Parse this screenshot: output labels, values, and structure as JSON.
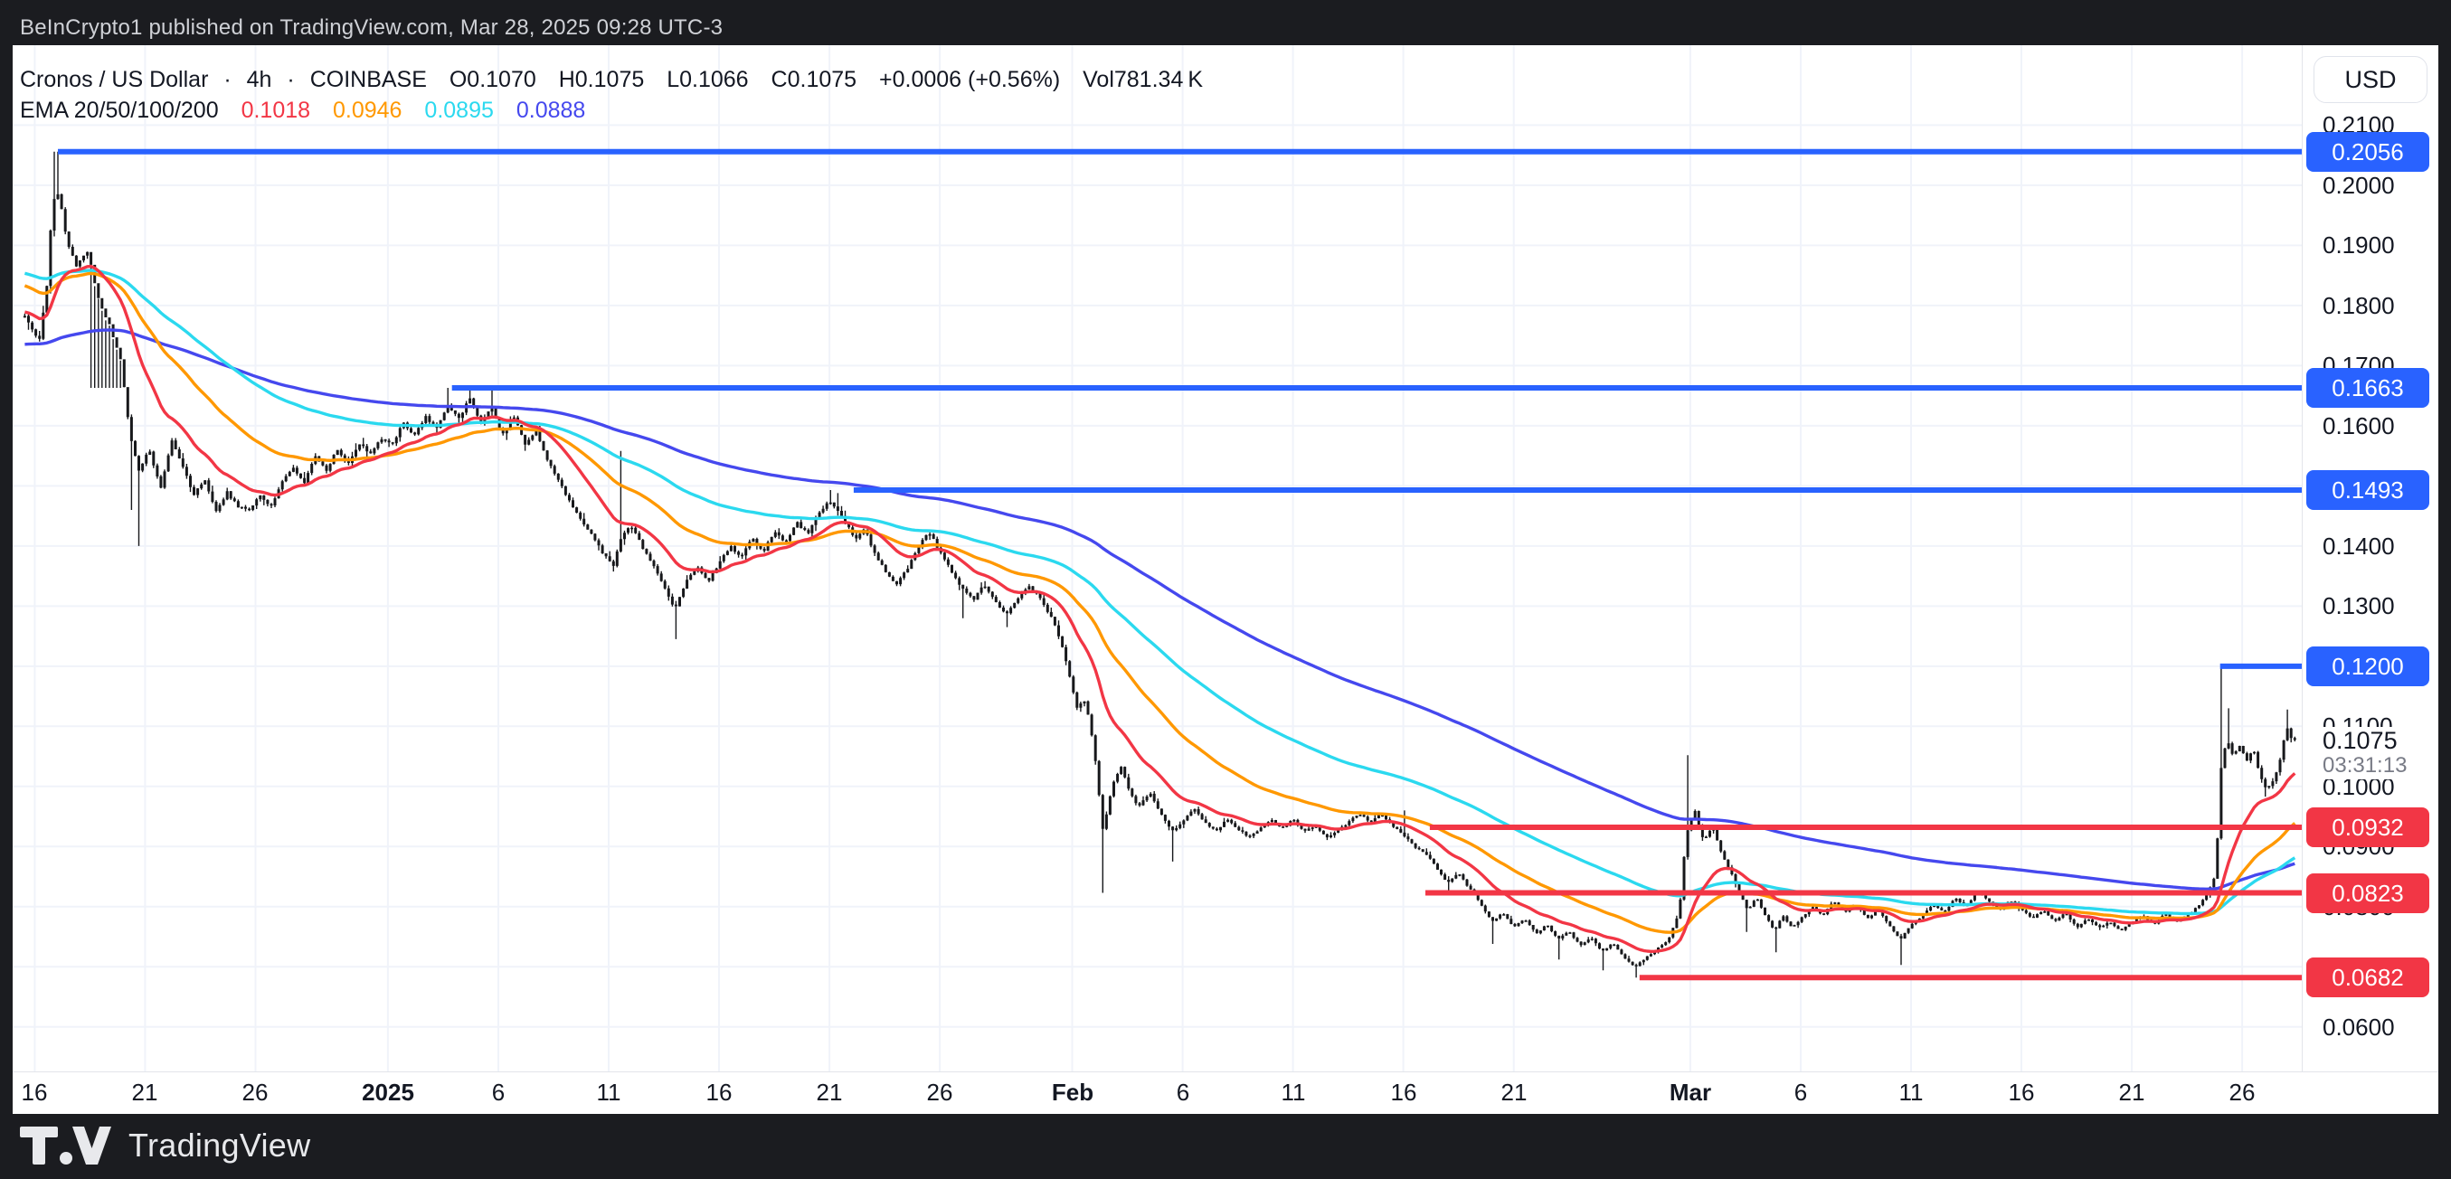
{
  "attribution": {
    "text": "BeInCrypto1 published on TradingView.com, Mar 28, 2025 09:28 UTC-3"
  },
  "legend": {
    "symbol": "Cronos / US Dollar",
    "separator": "·",
    "interval": "4h",
    "exchange": "COINBASE",
    "ohlc": {
      "o_label": "O",
      "o": "0.1070",
      "h_label": "H",
      "h": "0.1075",
      "l_label": "L",
      "l": "0.1066",
      "c_label": "C",
      "c": "0.1075"
    },
    "change": "+0.0006 (+0.56%)",
    "volume": "Vol781.34 K",
    "ema_title": "EMA 20/50/100/200"
  },
  "axis": {
    "currency_button": "USD"
  },
  "footer": {
    "brand": "TradingView"
  },
  "chart_data": {
    "type": "candlestick",
    "title": "Cronos / US Dollar",
    "interval": "4h",
    "exchange": "COINBASE",
    "ohlc": {
      "open": 0.107,
      "high": 0.1075,
      "low": 0.1066,
      "close": 0.1075
    },
    "change_abs": 0.0006,
    "change_pct": 0.56,
    "volume": "781.34 K",
    "grid": true,
    "candle_color": "#17181b",
    "ylim": [
      0.0526,
      0.2233
    ],
    "x_domain_days": [
      -1.0,
      102.7
    ],
    "x_start_date": "2024-12-16",
    "bars_per_day": 6,
    "y_ticks": [
      {
        "label": "0.2100",
        "value": 0.21
      },
      {
        "label": "0.2000",
        "value": 0.2
      },
      {
        "label": "0.1900",
        "value": 0.19
      },
      {
        "label": "0.1800",
        "value": 0.18
      },
      {
        "label": "0.1700",
        "value": 0.17
      },
      {
        "label": "0.1600",
        "value": 0.16
      },
      {
        "label": "0.1500",
        "value": 0.15
      },
      {
        "label": "0.1400",
        "value": 0.14
      },
      {
        "label": "0.1300",
        "value": 0.13
      },
      {
        "label": "0.1200",
        "value": 0.12
      },
      {
        "label": "0.1100",
        "value": 0.11
      },
      {
        "label": "0.1000",
        "value": 0.1
      },
      {
        "label": "0.0900",
        "value": 0.09
      },
      {
        "label": "0.0800",
        "value": 0.08
      },
      {
        "label": "0.0700",
        "value": 0.07
      },
      {
        "label": "0.0600",
        "value": 0.06
      }
    ],
    "x_labels": [
      {
        "label": "16",
        "day": 0,
        "bold": false
      },
      {
        "label": "21",
        "day": 5,
        "bold": false
      },
      {
        "label": "26",
        "day": 10,
        "bold": false
      },
      {
        "label": "2025",
        "day": 16,
        "bold": true
      },
      {
        "label": "6",
        "day": 21,
        "bold": false
      },
      {
        "label": "11",
        "day": 26,
        "bold": false
      },
      {
        "label": "16",
        "day": 31,
        "bold": false
      },
      {
        "label": "21",
        "day": 36,
        "bold": false
      },
      {
        "label": "26",
        "day": 41,
        "bold": false
      },
      {
        "label": "Feb",
        "day": 47,
        "bold": true
      },
      {
        "label": "6",
        "day": 52,
        "bold": false
      },
      {
        "label": "11",
        "day": 57,
        "bold": false
      },
      {
        "label": "16",
        "day": 62,
        "bold": false
      },
      {
        "label": "21",
        "day": 67,
        "bold": false
      },
      {
        "label": "Mar",
        "day": 75,
        "bold": true
      },
      {
        "label": "6",
        "day": 80,
        "bold": false
      },
      {
        "label": "11",
        "day": 85,
        "bold": false
      },
      {
        "label": "16",
        "day": 90,
        "bold": false
      },
      {
        "label": "21",
        "day": 95,
        "bold": false
      },
      {
        "label": "26",
        "day": 100,
        "bold": false
      }
    ],
    "levels": [
      {
        "label": "0.2056",
        "price": 0.2056,
        "from_day": 1.05,
        "color": "#2962ff",
        "kind": "resistance"
      },
      {
        "label": "0.1663",
        "price": 0.1663,
        "from_day": 18.9,
        "color": "#2962ff",
        "kind": "resistance"
      },
      {
        "label": "0.1493",
        "price": 0.1493,
        "from_day": 37.1,
        "color": "#2962ff",
        "kind": "resistance"
      },
      {
        "label": "0.1200",
        "price": 0.12,
        "from_day": 99.0,
        "color": "#2962ff",
        "kind": "resistance"
      },
      {
        "label": "0.0932",
        "price": 0.0932,
        "from_day": 63.2,
        "color": "#f23645",
        "kind": "support"
      },
      {
        "label": "0.0823",
        "price": 0.0823,
        "from_day": 63.0,
        "color": "#f23645",
        "kind": "support"
      },
      {
        "label": "0.0682",
        "price": 0.0682,
        "from_day": 72.7,
        "color": "#f23645",
        "kind": "support"
      }
    ],
    "last_price": {
      "label": "0.1075",
      "price": 0.1075,
      "countdown": "03:31:13"
    },
    "emas": {
      "periods": [
        20,
        50,
        100,
        200
      ],
      "colors": [
        "#f23645",
        "#ff9800",
        "#2bd9ef",
        "#4548ee"
      ],
      "seeds": [
        0.179,
        0.1835,
        0.1855,
        0.1735
      ],
      "legend_values": [
        "0.1018",
        "0.0946",
        "0.0895",
        "0.0888"
      ]
    },
    "price_path_waypoints": [
      [
        -0.45,
        0.178
      ],
      [
        0.2,
        0.174
      ],
      [
        0.55,
        0.183
      ],
      [
        0.8,
        0.197
      ],
      [
        1.1,
        0.199
      ],
      [
        1.45,
        0.191
      ],
      [
        1.9,
        0.1865
      ],
      [
        2.4,
        0.189
      ],
      [
        2.9,
        0.181
      ],
      [
        3.4,
        0.1765
      ],
      [
        3.9,
        0.171
      ],
      [
        4.3,
        0.159
      ],
      [
        4.7,
        0.1525
      ],
      [
        5.2,
        0.156
      ],
      [
        5.7,
        0.1495
      ],
      [
        6.2,
        0.1575
      ],
      [
        6.7,
        0.1535
      ],
      [
        7.2,
        0.1485
      ],
      [
        7.7,
        0.151
      ],
      [
        8.2,
        0.1455
      ],
      [
        8.7,
        0.149
      ],
      [
        9.2,
        0.1465
      ],
      [
        9.7,
        0.146
      ],
      [
        10.2,
        0.1485
      ],
      [
        10.7,
        0.1465
      ],
      [
        11.2,
        0.1505
      ],
      [
        11.7,
        0.153
      ],
      [
        12.2,
        0.1505
      ],
      [
        12.7,
        0.155
      ],
      [
        13.2,
        0.1525
      ],
      [
        13.7,
        0.156
      ],
      [
        14.2,
        0.1535
      ],
      [
        14.7,
        0.157
      ],
      [
        15.2,
        0.1555
      ],
      [
        15.7,
        0.158
      ],
      [
        16.2,
        0.157
      ],
      [
        16.7,
        0.1605
      ],
      [
        17.2,
        0.1585
      ],
      [
        17.7,
        0.1615
      ],
      [
        18.2,
        0.1595
      ],
      [
        18.7,
        0.1635
      ],
      [
        19.2,
        0.161
      ],
      [
        19.7,
        0.1645
      ],
      [
        20.2,
        0.1605
      ],
      [
        20.7,
        0.163
      ],
      [
        21.2,
        0.1585
      ],
      [
        21.7,
        0.1615
      ],
      [
        22.2,
        0.157
      ],
      [
        22.7,
        0.159
      ],
      [
        23.2,
        0.1545
      ],
      [
        23.7,
        0.151
      ],
      [
        24.2,
        0.1475
      ],
      [
        24.7,
        0.1445
      ],
      [
        25.2,
        0.142
      ],
      [
        25.7,
        0.139
      ],
      [
        26.2,
        0.1365
      ],
      [
        26.5,
        0.141
      ],
      [
        27,
        0.1435
      ],
      [
        27.5,
        0.14
      ],
      [
        28,
        0.137
      ],
      [
        28.5,
        0.1335
      ],
      [
        29,
        0.1295
      ],
      [
        29.5,
        0.134
      ],
      [
        30,
        0.1365
      ],
      [
        30.5,
        0.134
      ],
      [
        31,
        0.137
      ],
      [
        31.5,
        0.14
      ],
      [
        32,
        0.138
      ],
      [
        32.5,
        0.1415
      ],
      [
        33,
        0.139
      ],
      [
        33.5,
        0.1425
      ],
      [
        34,
        0.1405
      ],
      [
        34.5,
        0.144
      ],
      [
        35,
        0.142
      ],
      [
        35.5,
        0.1455
      ],
      [
        36,
        0.1475
      ],
      [
        36.4,
        0.146
      ],
      [
        36.8,
        0.1435
      ],
      [
        37.2,
        0.141
      ],
      [
        37.6,
        0.143
      ],
      [
        38,
        0.139
      ],
      [
        38.5,
        0.136
      ],
      [
        39,
        0.1335
      ],
      [
        39.5,
        0.136
      ],
      [
        40,
        0.1395
      ],
      [
        40.5,
        0.1425
      ],
      [
        41,
        0.139
      ],
      [
        41.5,
        0.136
      ],
      [
        42,
        0.133
      ],
      [
        42.5,
        0.131
      ],
      [
        43,
        0.1335
      ],
      [
        43.5,
        0.131
      ],
      [
        44,
        0.1285
      ],
      [
        44.5,
        0.131
      ],
      [
        45,
        0.1335
      ],
      [
        45.5,
        0.1315
      ],
      [
        46,
        0.1285
      ],
      [
        46.3,
        0.126
      ],
      [
        46.6,
        0.1225
      ],
      [
        46.9,
        0.118
      ],
      [
        47.2,
        0.113
      ],
      [
        47.6,
        0.1145
      ],
      [
        48,
        0.106
      ],
      [
        48.4,
        0.0925
      ],
      [
        48.8,
        0.1
      ],
      [
        49.2,
        0.1035
      ],
      [
        49.6,
        0.099
      ],
      [
        50,
        0.0965
      ],
      [
        50.5,
        0.099
      ],
      [
        51,
        0.0955
      ],
      [
        51.5,
        0.0925
      ],
      [
        52,
        0.094
      ],
      [
        52.5,
        0.0965
      ],
      [
        53,
        0.094
      ],
      [
        53.5,
        0.0925
      ],
      [
        54,
        0.0945
      ],
      [
        54.5,
        0.093
      ],
      [
        55,
        0.0915
      ],
      [
        55.5,
        0.093
      ],
      [
        56,
        0.0945
      ],
      [
        56.5,
        0.093
      ],
      [
        57,
        0.0945
      ],
      [
        57.5,
        0.0925
      ],
      [
        58,
        0.0935
      ],
      [
        58.5,
        0.0915
      ],
      [
        59,
        0.0925
      ],
      [
        59.5,
        0.094
      ],
      [
        60,
        0.0955
      ],
      [
        60.5,
        0.094
      ],
      [
        61,
        0.0955
      ],
      [
        61.5,
        0.0935
      ],
      [
        62,
        0.092
      ],
      [
        62.5,
        0.09
      ],
      [
        63,
        0.089
      ],
      [
        63.5,
        0.0865
      ],
      [
        64,
        0.084
      ],
      [
        64.5,
        0.0855
      ],
      [
        65,
        0.083
      ],
      [
        65.5,
        0.0805
      ],
      [
        66,
        0.0775
      ],
      [
        66.5,
        0.079
      ],
      [
        67,
        0.0765
      ],
      [
        67.5,
        0.078
      ],
      [
        68,
        0.0755
      ],
      [
        68.5,
        0.077
      ],
      [
        69,
        0.0745
      ],
      [
        69.5,
        0.076
      ],
      [
        70,
        0.0735
      ],
      [
        70.5,
        0.075
      ],
      [
        71,
        0.0725
      ],
      [
        71.5,
        0.074
      ],
      [
        72,
        0.0715
      ],
      [
        72.5,
        0.07
      ],
      [
        73,
        0.0715
      ],
      [
        73.5,
        0.073
      ],
      [
        74,
        0.0745
      ],
      [
        74.5,
        0.079
      ],
      [
        74.8,
        0.092
      ],
      [
        75.2,
        0.096
      ],
      [
        75.6,
        0.091
      ],
      [
        76,
        0.0935
      ],
      [
        76.4,
        0.089
      ],
      [
        76.8,
        0.086
      ],
      [
        77.2,
        0.0825
      ],
      [
        77.6,
        0.0795
      ],
      [
        78,
        0.0815
      ],
      [
        78.4,
        0.0785
      ],
      [
        78.8,
        0.076
      ],
      [
        79.2,
        0.0785
      ],
      [
        79.6,
        0.0765
      ],
      [
        80,
        0.078
      ],
      [
        80.5,
        0.08
      ],
      [
        81,
        0.0785
      ],
      [
        81.5,
        0.081
      ],
      [
        82,
        0.079
      ],
      [
        82.5,
        0.0805
      ],
      [
        83,
        0.078
      ],
      [
        83.5,
        0.0795
      ],
      [
        84,
        0.077
      ],
      [
        84.5,
        0.0745
      ],
      [
        85,
        0.077
      ],
      [
        85.5,
        0.0785
      ],
      [
        86,
        0.0805
      ],
      [
        86.5,
        0.079
      ],
      [
        87,
        0.0815
      ],
      [
        87.5,
        0.08
      ],
      [
        88,
        0.0825
      ],
      [
        88.5,
        0.081
      ],
      [
        89,
        0.0795
      ],
      [
        89.5,
        0.081
      ],
      [
        90,
        0.0795
      ],
      [
        90.5,
        0.078
      ],
      [
        91,
        0.0795
      ],
      [
        91.5,
        0.0775
      ],
      [
        92,
        0.079
      ],
      [
        92.5,
        0.0765
      ],
      [
        93,
        0.078
      ],
      [
        93.5,
        0.0765
      ],
      [
        94,
        0.0775
      ],
      [
        94.5,
        0.076
      ],
      [
        95,
        0.0775
      ],
      [
        95.5,
        0.0785
      ],
      [
        96,
        0.077
      ],
      [
        96.5,
        0.079
      ],
      [
        97,
        0.0775
      ],
      [
        97.5,
        0.0785
      ],
      [
        98,
        0.08
      ],
      [
        98.4,
        0.082
      ],
      [
        98.8,
        0.0855
      ],
      [
        99.05,
        0.103
      ],
      [
        99.3,
        0.108
      ],
      [
        99.6,
        0.105
      ],
      [
        99.9,
        0.107
      ],
      [
        100.2,
        0.104
      ],
      [
        100.5,
        0.1065
      ],
      [
        100.8,
        0.102
      ],
      [
        101.1,
        0.0995
      ],
      [
        101.4,
        0.101
      ],
      [
        101.7,
        0.104
      ],
      [
        102,
        0.11
      ],
      [
        102.2,
        0.108
      ],
      [
        102.45,
        0.1075
      ]
    ],
    "wick_events": [
      {
        "d": 0.8,
        "high": 0.2056
      },
      {
        "d": 1.1,
        "high": 0.2056
      },
      {
        "d": 4.3,
        "low": 0.146
      },
      {
        "d": 4.7,
        "low": 0.14
      },
      {
        "d": 18.7,
        "high": 0.1663
      },
      {
        "d": 19.7,
        "high": 0.166
      },
      {
        "d": 20.7,
        "high": 0.1659
      },
      {
        "d": 26.5,
        "high": 0.1558
      },
      {
        "d": 29.0,
        "low": 0.1245
      },
      {
        "d": 36.0,
        "high": 0.1493
      },
      {
        "d": 36.4,
        "high": 0.1488
      },
      {
        "d": 42.0,
        "low": 0.128
      },
      {
        "d": 44.0,
        "low": 0.1265
      },
      {
        "d": 48.4,
        "low": 0.0823
      },
      {
        "d": 51.5,
        "low": 0.0875
      },
      {
        "d": 62.0,
        "high": 0.096
      },
      {
        "d": 64.0,
        "low": 0.0822
      },
      {
        "d": 66.0,
        "low": 0.0738
      },
      {
        "d": 69.0,
        "low": 0.0712
      },
      {
        "d": 71.0,
        "low": 0.0694
      },
      {
        "d": 72.5,
        "low": 0.0682
      },
      {
        "d": 74.8,
        "high": 0.1052
      },
      {
        "d": 77.6,
        "low": 0.0758
      },
      {
        "d": 78.8,
        "low": 0.0724
      },
      {
        "d": 84.5,
        "low": 0.0703
      },
      {
        "d": 99.05,
        "high": 0.12
      },
      {
        "d": 99.3,
        "high": 0.113
      },
      {
        "d": 101.1,
        "low": 0.0983
      },
      {
        "d": 102.0,
        "high": 0.1128
      }
    ]
  },
  "colors": {
    "level_blue": "#2962ff",
    "level_red": "#f23645",
    "grid": "#f0f3fa",
    "text_dark": "#131722",
    "text_gray": "#787b86",
    "frame_dark": "#1b1c20"
  }
}
